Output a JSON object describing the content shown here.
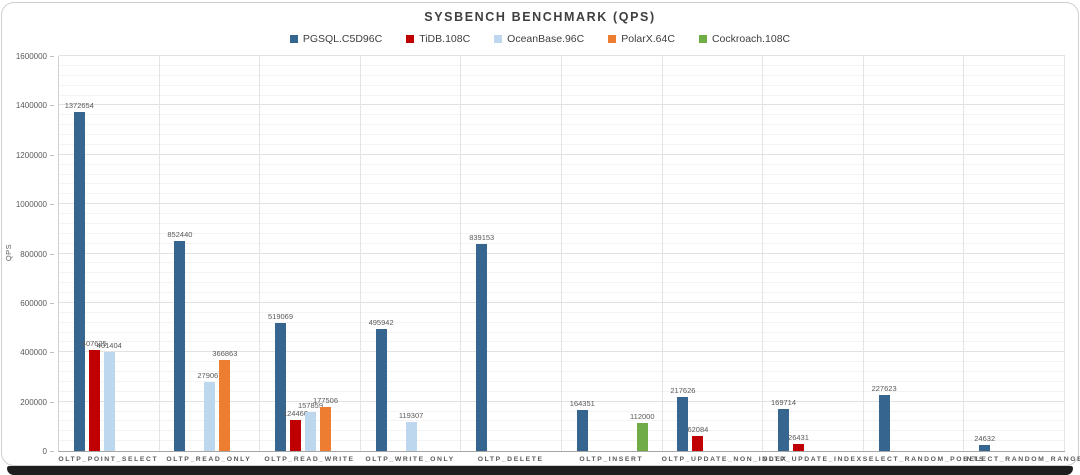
{
  "window": {
    "title": "SYSBENCH BENCHMARK (QPS)"
  },
  "chart_data": {
    "type": "bar",
    "title": "SYSBENCH BENCHMARK (QPS)",
    "xlabel": "",
    "ylabel": "QPS",
    "ylim": [
      0,
      1600000
    ],
    "y_major_tick": 200000,
    "y_minor_tick": 40000,
    "grid": true,
    "legend_position": "top",
    "y_tick_labels": [
      "0",
      "200000",
      "400000",
      "600000",
      "800000",
      "1000000",
      "1200000",
      "1400000",
      "1600000"
    ],
    "categories": [
      "OLTP_POINT_SELECT",
      "OLTP_READ_ONLY",
      "OLTP_READ_WRITE",
      "OLTP_WRITE_ONLY",
      "OLTP_DELETE",
      "OLTP_INSERT",
      "OLTP_UPDATE_NON_INDEX",
      "OLTP_UPDATE_INDEX",
      "SELECT_RANDOM_POINTS",
      "SELECT_RANDOM_RANGES"
    ],
    "series": [
      {
        "name": "PGSQL.C5D96C",
        "color": "#36668F",
        "values": [
          1372654,
          852440,
          519069,
          495942,
          839153,
          164351,
          217626,
          169714,
          227623,
          24632
        ]
      },
      {
        "name": "TiDB.108C",
        "color": "#C00000",
        "values": [
          407625,
          null,
          124460,
          null,
          null,
          null,
          62084,
          26431,
          null,
          null
        ]
      },
      {
        "name": "OceanBase.96C",
        "color": "#BDD7EE",
        "values": [
          401404,
          279067,
          157859,
          119307,
          null,
          null,
          null,
          null,
          null,
          null
        ]
      },
      {
        "name": "PolarX.64C",
        "color": "#ED7D31",
        "values": [
          null,
          366863,
          177506,
          null,
          null,
          null,
          null,
          null,
          null,
          null
        ]
      },
      {
        "name": "Cockroach.108C",
        "color": "#70AD47",
        "values": [
          null,
          null,
          null,
          null,
          null,
          112000,
          null,
          null,
          null,
          null
        ]
      }
    ]
  }
}
